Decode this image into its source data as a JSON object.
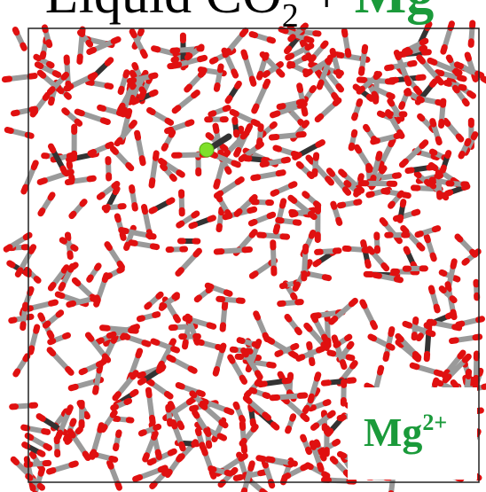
{
  "title": {
    "text": "Liquid CO",
    "subscript": "2",
    "plus": "+",
    "ion": "Mg"
  },
  "label": {
    "symbol": "Mg",
    "charge": "2+"
  }
}
